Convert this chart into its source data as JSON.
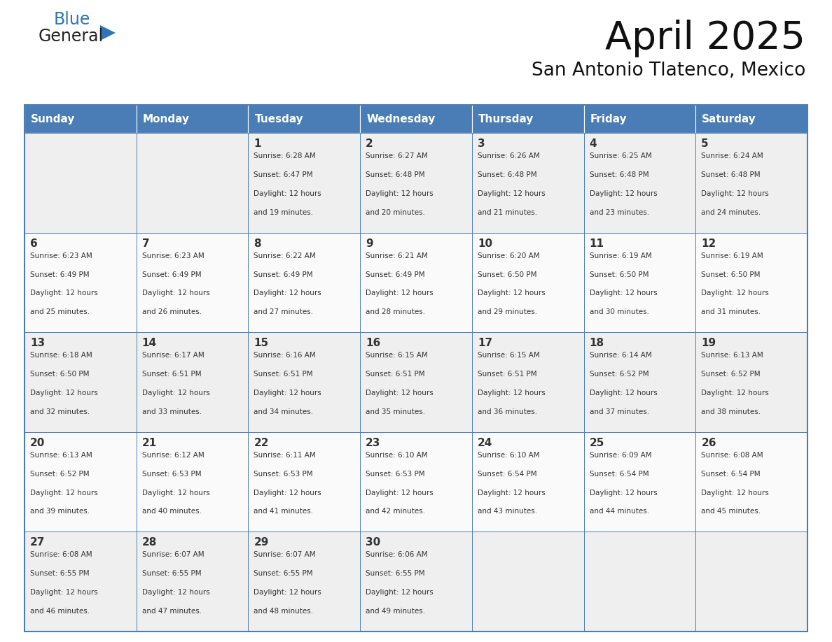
{
  "title": "April 2025",
  "subtitle": "San Antonio Tlatenco, Mexico",
  "header_bg": "#4A7DB5",
  "header_text_color": "#FFFFFF",
  "cell_bg_odd": "#EFEFEF",
  "cell_bg_even": "#FAFAFA",
  "border_color": "#4A7DB5",
  "text_color": "#333333",
  "days_of_week": [
    "Sunday",
    "Monday",
    "Tuesday",
    "Wednesday",
    "Thursday",
    "Friday",
    "Saturday"
  ],
  "weeks": [
    [
      {
        "day": "",
        "info": ""
      },
      {
        "day": "",
        "info": ""
      },
      {
        "day": "1",
        "sunrise": "Sunrise: 6:28 AM",
        "sunset": "Sunset: 6:47 PM",
        "daylight": "Daylight: 12 hours",
        "daylight2": "and 19 minutes."
      },
      {
        "day": "2",
        "sunrise": "Sunrise: 6:27 AM",
        "sunset": "Sunset: 6:48 PM",
        "daylight": "Daylight: 12 hours",
        "daylight2": "and 20 minutes."
      },
      {
        "day": "3",
        "sunrise": "Sunrise: 6:26 AM",
        "sunset": "Sunset: 6:48 PM",
        "daylight": "Daylight: 12 hours",
        "daylight2": "and 21 minutes."
      },
      {
        "day": "4",
        "sunrise": "Sunrise: 6:25 AM",
        "sunset": "Sunset: 6:48 PM",
        "daylight": "Daylight: 12 hours",
        "daylight2": "and 23 minutes."
      },
      {
        "day": "5",
        "sunrise": "Sunrise: 6:24 AM",
        "sunset": "Sunset: 6:48 PM",
        "daylight": "Daylight: 12 hours",
        "daylight2": "and 24 minutes."
      }
    ],
    [
      {
        "day": "6",
        "sunrise": "Sunrise: 6:23 AM",
        "sunset": "Sunset: 6:49 PM",
        "daylight": "Daylight: 12 hours",
        "daylight2": "and 25 minutes."
      },
      {
        "day": "7",
        "sunrise": "Sunrise: 6:23 AM",
        "sunset": "Sunset: 6:49 PM",
        "daylight": "Daylight: 12 hours",
        "daylight2": "and 26 minutes."
      },
      {
        "day": "8",
        "sunrise": "Sunrise: 6:22 AM",
        "sunset": "Sunset: 6:49 PM",
        "daylight": "Daylight: 12 hours",
        "daylight2": "and 27 minutes."
      },
      {
        "day": "9",
        "sunrise": "Sunrise: 6:21 AM",
        "sunset": "Sunset: 6:49 PM",
        "daylight": "Daylight: 12 hours",
        "daylight2": "and 28 minutes."
      },
      {
        "day": "10",
        "sunrise": "Sunrise: 6:20 AM",
        "sunset": "Sunset: 6:50 PM",
        "daylight": "Daylight: 12 hours",
        "daylight2": "and 29 minutes."
      },
      {
        "day": "11",
        "sunrise": "Sunrise: 6:19 AM",
        "sunset": "Sunset: 6:50 PM",
        "daylight": "Daylight: 12 hours",
        "daylight2": "and 30 minutes."
      },
      {
        "day": "12",
        "sunrise": "Sunrise: 6:19 AM",
        "sunset": "Sunset: 6:50 PM",
        "daylight": "Daylight: 12 hours",
        "daylight2": "and 31 minutes."
      }
    ],
    [
      {
        "day": "13",
        "sunrise": "Sunrise: 6:18 AM",
        "sunset": "Sunset: 6:50 PM",
        "daylight": "Daylight: 12 hours",
        "daylight2": "and 32 minutes."
      },
      {
        "day": "14",
        "sunrise": "Sunrise: 6:17 AM",
        "sunset": "Sunset: 6:51 PM",
        "daylight": "Daylight: 12 hours",
        "daylight2": "and 33 minutes."
      },
      {
        "day": "15",
        "sunrise": "Sunrise: 6:16 AM",
        "sunset": "Sunset: 6:51 PM",
        "daylight": "Daylight: 12 hours",
        "daylight2": "and 34 minutes."
      },
      {
        "day": "16",
        "sunrise": "Sunrise: 6:15 AM",
        "sunset": "Sunset: 6:51 PM",
        "daylight": "Daylight: 12 hours",
        "daylight2": "and 35 minutes."
      },
      {
        "day": "17",
        "sunrise": "Sunrise: 6:15 AM",
        "sunset": "Sunset: 6:51 PM",
        "daylight": "Daylight: 12 hours",
        "daylight2": "and 36 minutes."
      },
      {
        "day": "18",
        "sunrise": "Sunrise: 6:14 AM",
        "sunset": "Sunset: 6:52 PM",
        "daylight": "Daylight: 12 hours",
        "daylight2": "and 37 minutes."
      },
      {
        "day": "19",
        "sunrise": "Sunrise: 6:13 AM",
        "sunset": "Sunset: 6:52 PM",
        "daylight": "Daylight: 12 hours",
        "daylight2": "and 38 minutes."
      }
    ],
    [
      {
        "day": "20",
        "sunrise": "Sunrise: 6:13 AM",
        "sunset": "Sunset: 6:52 PM",
        "daylight": "Daylight: 12 hours",
        "daylight2": "and 39 minutes."
      },
      {
        "day": "21",
        "sunrise": "Sunrise: 6:12 AM",
        "sunset": "Sunset: 6:53 PM",
        "daylight": "Daylight: 12 hours",
        "daylight2": "and 40 minutes."
      },
      {
        "day": "22",
        "sunrise": "Sunrise: 6:11 AM",
        "sunset": "Sunset: 6:53 PM",
        "daylight": "Daylight: 12 hours",
        "daylight2": "and 41 minutes."
      },
      {
        "day": "23",
        "sunrise": "Sunrise: 6:10 AM",
        "sunset": "Sunset: 6:53 PM",
        "daylight": "Daylight: 12 hours",
        "daylight2": "and 42 minutes."
      },
      {
        "day": "24",
        "sunrise": "Sunrise: 6:10 AM",
        "sunset": "Sunset: 6:54 PM",
        "daylight": "Daylight: 12 hours",
        "daylight2": "and 43 minutes."
      },
      {
        "day": "25",
        "sunrise": "Sunrise: 6:09 AM",
        "sunset": "Sunset: 6:54 PM",
        "daylight": "Daylight: 12 hours",
        "daylight2": "and 44 minutes."
      },
      {
        "day": "26",
        "sunrise": "Sunrise: 6:08 AM",
        "sunset": "Sunset: 6:54 PM",
        "daylight": "Daylight: 12 hours",
        "daylight2": "and 45 minutes."
      }
    ],
    [
      {
        "day": "27",
        "sunrise": "Sunrise: 6:08 AM",
        "sunset": "Sunset: 6:55 PM",
        "daylight": "Daylight: 12 hours",
        "daylight2": "and 46 minutes."
      },
      {
        "day": "28",
        "sunrise": "Sunrise: 6:07 AM",
        "sunset": "Sunset: 6:55 PM",
        "daylight": "Daylight: 12 hours",
        "daylight2": "and 47 minutes."
      },
      {
        "day": "29",
        "sunrise": "Sunrise: 6:07 AM",
        "sunset": "Sunset: 6:55 PM",
        "daylight": "Daylight: 12 hours",
        "daylight2": "and 48 minutes."
      },
      {
        "day": "30",
        "sunrise": "Sunrise: 6:06 AM",
        "sunset": "Sunset: 6:55 PM",
        "daylight": "Daylight: 12 hours",
        "daylight2": "and 49 minutes."
      },
      {
        "day": "",
        "sunrise": "",
        "sunset": "",
        "daylight": "",
        "daylight2": ""
      },
      {
        "day": "",
        "sunrise": "",
        "sunset": "",
        "daylight": "",
        "daylight2": ""
      },
      {
        "day": "",
        "sunrise": "",
        "sunset": "",
        "daylight": "",
        "daylight2": ""
      }
    ]
  ],
  "logo_text1": "General",
  "logo_text2": "Blue",
  "logo_color1": "#222222",
  "logo_color2": "#2E75B6",
  "logo_triangle_color": "#2E75B6"
}
